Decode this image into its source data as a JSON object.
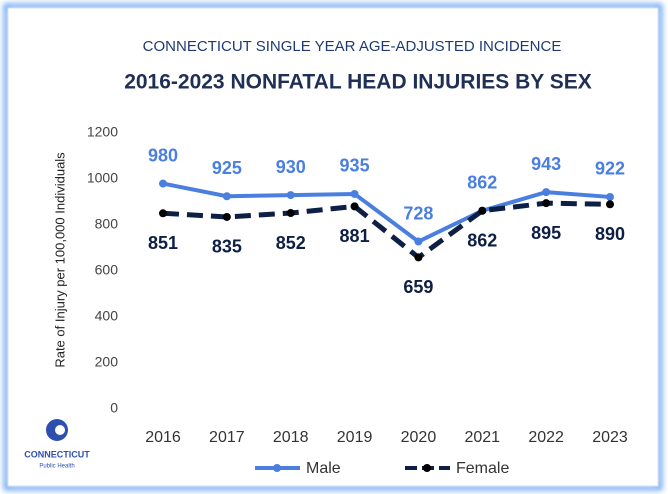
{
  "chart_data": {
    "type": "line",
    "subtitle": "CONNECTICUT SINGLE YEAR AGE-ADJUSTED INCIDENCE",
    "title": "2016-2023 NONFATAL HEAD INJURIES BY SEX",
    "y_label": "Rate of Injury per 100,000 Individuals",
    "categories": [
      "2016",
      "2017",
      "2018",
      "2019",
      "2020",
      "2021",
      "2022",
      "2023"
    ],
    "series": [
      {
        "name": "Male",
        "color": "#4a7fe0",
        "dashed": false,
        "label_position": "above",
        "values": [
          980,
          925,
          930,
          935,
          728,
          862,
          943,
          922
        ]
      },
      {
        "name": "Female",
        "color": "#0d1f45",
        "dashed": true,
        "label_position": "below",
        "values": [
          851,
          835,
          852,
          881,
          659,
          862,
          895,
          890
        ]
      }
    ],
    "ylim": [
      0,
      1200
    ],
    "yticks": [
      0,
      200,
      400,
      600,
      800,
      1000,
      1200
    ],
    "grid": false,
    "legend": "bottom",
    "logo": {
      "name": "CONNECTICUT",
      "tagline": "Public Health"
    }
  }
}
